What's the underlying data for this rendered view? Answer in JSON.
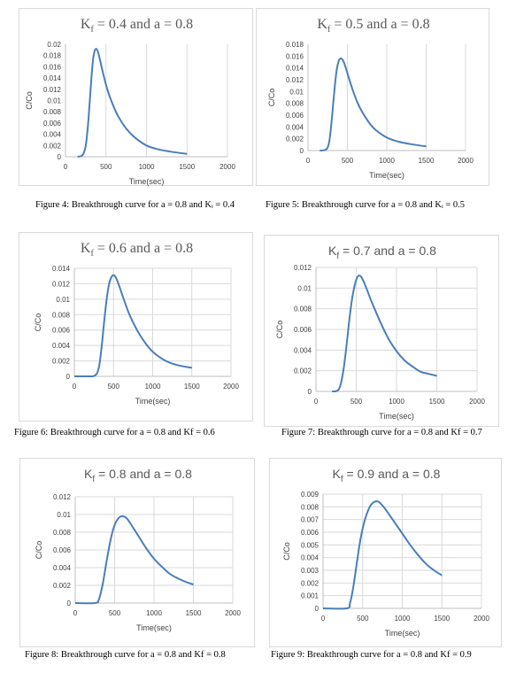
{
  "colors": {
    "series": "#4a7ebb"
  },
  "captions": {
    "fig4": "Figure 4: Breakthrough curve for a = 0.8 and Kᵢ = 0.4",
    "fig5": "Figure 5: Breakthrough curve for a = 0.8 and Kᵢ = 0.5",
    "fig6": "Figure 6:   Breakthrough curve for a = 0.8 and Kf = 0.6",
    "fig7": "Figure 7:   Breakthrough curve for a = 0.8 and Kf = 0.7",
    "fig8": "Figure 8:   Breakthrough curve for a = 0.8 and Kf = 0.8",
    "fig9": "Figure 9:   Breakthrough curve for a = 0.8 and Kf = 0.9"
  },
  "chart_data": [
    {
      "type": "line",
      "title_main": "K",
      "title_sub": "f",
      "title_rest": " = 0.4 and a = 0.8",
      "xlabel": "Time(sec)",
      "ylabel": "C/Co",
      "xlim": [
        0,
        2000
      ],
      "ylim": [
        0,
        0.02
      ],
      "xticks": [
        "0",
        "500",
        "1000",
        "1500",
        "2000"
      ],
      "yticks": [
        "0",
        "0.002",
        "0.004",
        "0.006",
        "0.008",
        "0.01",
        "0.012",
        "0.014",
        "0.016",
        "0.018",
        "0.02"
      ],
      "grid": "vertical",
      "series": [
        {
          "x": [
            150,
            190,
            220,
            250,
            280,
            300,
            320,
            340,
            360,
            380,
            400,
            430,
            470,
            520,
            580,
            650,
            750,
            850,
            1000,
            1150,
            1300,
            1500
          ],
          "y": [
            0,
            0.0001,
            0.0005,
            0.002,
            0.006,
            0.01,
            0.014,
            0.0172,
            0.0188,
            0.0192,
            0.0187,
            0.017,
            0.0145,
            0.0118,
            0.0094,
            0.0072,
            0.005,
            0.0035,
            0.002,
            0.0013,
            0.0009,
            0.0005
          ]
        }
      ]
    },
    {
      "type": "line",
      "title_main": "K",
      "title_sub": "f",
      "title_rest": " = 0.5 and a = 0.8",
      "xlabel": "Time(sec)",
      "ylabel": "C/Co",
      "xlim": [
        0,
        2000
      ],
      "ylim": [
        0,
        0.018
      ],
      "xticks": [
        "0",
        "500",
        "1000",
        "1500",
        "2000"
      ],
      "yticks": [
        "0",
        "0.002",
        "0.004",
        "0.006",
        "0.008",
        "0.01",
        "0.012",
        "0.014",
        "0.016",
        "0.018"
      ],
      "grid": "vertical",
      "series": [
        {
          "x": [
            150,
            200,
            240,
            270,
            300,
            330,
            360,
            390,
            420,
            450,
            480,
            520,
            580,
            650,
            750,
            850,
            1000,
            1150,
            1300,
            1500
          ],
          "y": [
            0,
            5e-05,
            0.0003,
            0.0015,
            0.005,
            0.0095,
            0.0132,
            0.0152,
            0.0156,
            0.0151,
            0.014,
            0.0122,
            0.0098,
            0.0075,
            0.0052,
            0.0036,
            0.0022,
            0.0015,
            0.0011,
            0.0007
          ]
        }
      ]
    },
    {
      "type": "line",
      "title_main": "K",
      "title_sub": "f",
      "title_rest": " = 0.6 and a = 0.8",
      "xlabel": "Time(sec)",
      "ylabel": "C/Co",
      "xlim": [
        0,
        2000
      ],
      "ylim": [
        0,
        0.014
      ],
      "xticks": [
        "0",
        "500",
        "1000",
        "1500",
        "2000"
      ],
      "yticks": [
        "0",
        "0.002",
        "0.004",
        "0.006",
        "0.008",
        "0.01",
        "0.012",
        "0.014"
      ],
      "grid": "both",
      "series": [
        {
          "x": [
            0,
            200,
            250,
            290,
            320,
            350,
            380,
            410,
            440,
            470,
            500,
            530,
            570,
            620,
            700,
            800,
            900,
            1000,
            1150,
            1300,
            1500
          ],
          "y": [
            0,
            0,
            5e-05,
            0.0004,
            0.0015,
            0.004,
            0.007,
            0.0098,
            0.0118,
            0.0128,
            0.0131,
            0.0128,
            0.0118,
            0.0103,
            0.0081,
            0.006,
            0.0044,
            0.0032,
            0.0021,
            0.0015,
            0.0011
          ]
        }
      ]
    },
    {
      "type": "line",
      "title_main": "K",
      "title_sub": "f",
      "title_rest": " = 0.7 and a = 0.8",
      "xlabel": "Time(sec)",
      "ylabel": "C/Co",
      "xlim": [
        0,
        2000
      ],
      "ylim": [
        0,
        0.012
      ],
      "xticks": [
        "0",
        "500",
        "1000",
        "1500",
        "2000"
      ],
      "yticks": [
        "0",
        "0.002",
        "0.004",
        "0.006",
        "0.008",
        "0.01",
        "0.012"
      ],
      "grid": "both",
      "series": [
        {
          "x": [
            200,
            260,
            300,
            340,
            380,
            420,
            460,
            500,
            530,
            560,
            600,
            650,
            700,
            800,
            900,
            1000,
            1100,
            1200,
            1300,
            1400,
            1500
          ],
          "y": [
            0,
            5e-05,
            0.0005,
            0.002,
            0.0045,
            0.0073,
            0.0095,
            0.0108,
            0.0112,
            0.0111,
            0.0105,
            0.0095,
            0.0085,
            0.0067,
            0.0051,
            0.0039,
            0.003,
            0.0024,
            0.0019,
            0.0017,
            0.0015
          ]
        }
      ]
    },
    {
      "type": "line",
      "title_main": "K",
      "title_sub": "f",
      "title_rest": " = 0.8 and a = 0.8",
      "xlabel": "Time(sec)",
      "ylabel": "C/Co",
      "xlim": [
        0,
        2000
      ],
      "ylim": [
        0,
        0.012
      ],
      "xticks": [
        "0",
        "500",
        "1000",
        "1500",
        "2000"
      ],
      "yticks": [
        "0",
        "0.002",
        "0.004",
        "0.006",
        "0.008",
        "0.01",
        "0.012"
      ],
      "grid": "both",
      "series": [
        {
          "x": [
            0,
            250,
            300,
            350,
            400,
            450,
            500,
            550,
            600,
            650,
            700,
            800,
            900,
            1000,
            1100,
            1200,
            1300,
            1400,
            1500
          ],
          "y": [
            0,
            0,
            0.0004,
            0.0022,
            0.0048,
            0.0072,
            0.0088,
            0.0096,
            0.0098,
            0.0096,
            0.009,
            0.0076,
            0.0062,
            0.005,
            0.0041,
            0.0033,
            0.0028,
            0.0024,
            0.0021
          ]
        }
      ]
    },
    {
      "type": "line",
      "title_main": "K",
      "title_sub": "f",
      "title_rest": " = 0.9 and a = 0.8",
      "xlabel": "Time(sec)",
      "ylabel": "C/Co",
      "xlim": [
        0,
        2000
      ],
      "ylim": [
        0,
        0.009
      ],
      "xticks": [
        "0",
        "500",
        "1000",
        "1500",
        "2000"
      ],
      "yticks": [
        "0",
        "0.001",
        "0.002",
        "0.003",
        "0.004",
        "0.005",
        "0.006",
        "0.007",
        "0.008",
        "0.009"
      ],
      "grid": "both",
      "series": [
        {
          "x": [
            0,
            300,
            340,
            380,
            420,
            460,
            500,
            550,
            600,
            650,
            700,
            750,
            800,
            900,
            1000,
            1100,
            1200,
            1300,
            1400,
            1500
          ],
          "y": [
            0,
            0,
            0.0004,
            0.0016,
            0.0033,
            0.005,
            0.0063,
            0.0074,
            0.0081,
            0.0084,
            0.0084,
            0.0081,
            0.0077,
            0.0068,
            0.0059,
            0.005,
            0.0042,
            0.0035,
            0.003,
            0.0026
          ]
        }
      ]
    }
  ]
}
